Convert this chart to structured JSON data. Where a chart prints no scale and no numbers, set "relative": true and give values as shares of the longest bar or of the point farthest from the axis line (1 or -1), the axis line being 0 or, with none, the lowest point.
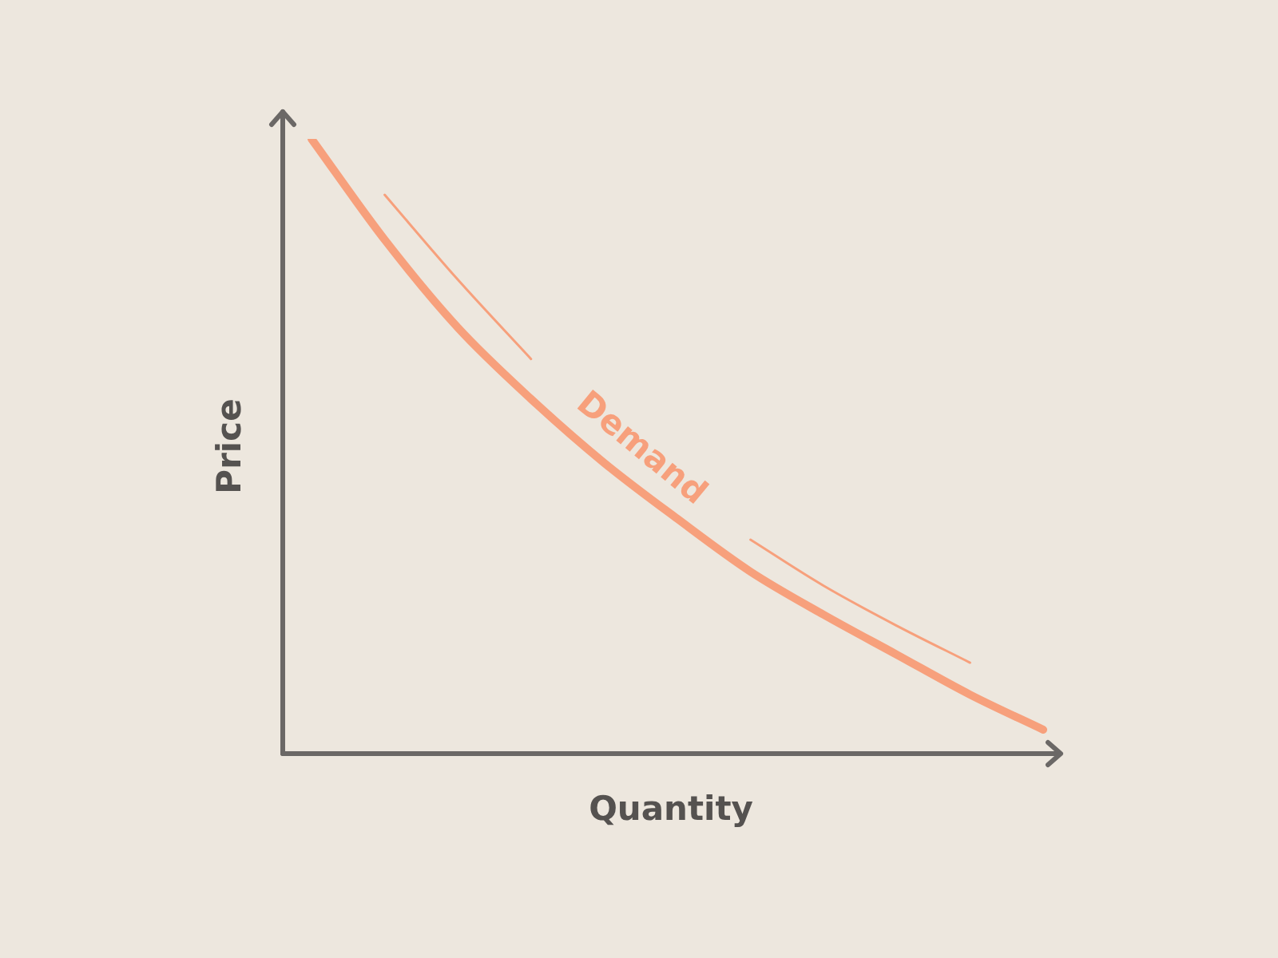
{
  "chart_data": {
    "type": "line",
    "xlabel": "Quantity",
    "ylabel": "Price",
    "relative": true,
    "categories": [
      null,
      null,
      null,
      null,
      null,
      null,
      null,
      null,
      null,
      null,
      null
    ],
    "series": [
      {
        "color": "#f7a07c",
        "values": [
          1,
          0.836,
          0.693,
          0.577,
          0.473,
          0.382,
          0.296,
          0.226,
          0.161,
          0.096,
          0.039
        ]
      },
      {
        "name": "Demand",
        "color": "#f7a07c",
        "values": [
          null,
          0.909,
          0.771,
          0.642,
          null,
          null,
          0.348,
          0.273,
          0.208,
          0.148,
          null
        ]
      }
    ]
  }
}
